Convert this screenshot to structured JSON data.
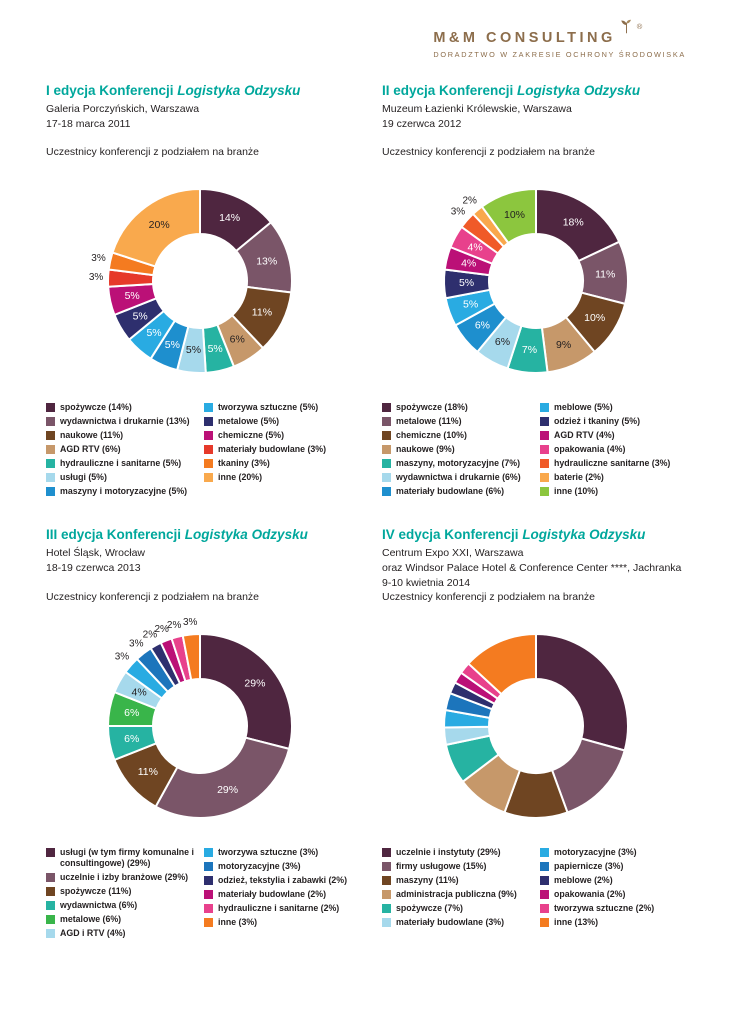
{
  "logo": {
    "name": "M&M CONSULTING",
    "registered": "®",
    "tagline": "DORADZTWO W ZAKRESIE OCHRONY ŚRODOWISKA",
    "color": "#8c6d4b"
  },
  "accent_color": "#00a79c",
  "sections": [
    {
      "title_prefix": "I edycja Konferencji ",
      "title_italic": "Logistyka Odzysku",
      "subtitle_lines": [
        "Galeria Porczyńskich, Warszawa",
        "17-18 marca 2011"
      ],
      "caption": "Uczestnicy konferencji z podziałem na branże"
    },
    {
      "title_prefix": "II edycja Konferencji ",
      "title_italic": "Logistyka Odzysku",
      "subtitle_lines": [
        "Muzeum Łazienki Królewskie, Warszawa",
        "19 czerwca 2012"
      ],
      "caption": "Uczestnicy konferencji z podziałem na branże"
    },
    {
      "title_prefix": "III edycja Konferencji ",
      "title_italic": "Logistyka Odzysku",
      "subtitle_lines": [
        "Hotel Śląsk, Wrocław",
        "18-19 czerwca 2013"
      ],
      "caption": "Uczestnicy konferencji z podziałem na branże"
    },
    {
      "title_prefix": "IV edycja Konferencji ",
      "title_italic": "Logistyka Odzysku",
      "subtitle_lines": [
        "Centrum Expo XXI, Warszawa",
        "oraz Windsor Palace Hotel & Conference Center ****, Jachranka",
        "9-10 kwietnia 2014"
      ],
      "caption": "Uczestnicy konferencji z podziałem na branże"
    }
  ],
  "chart_data": [
    {
      "type": "pie",
      "donut": true,
      "title": "Uczestnicy konferencji z podziałem na branże (I edycja, 2011)",
      "legend_position": "bottom",
      "show_slice_labels": true,
      "legend_split": 7,
      "slices": [
        {
          "label": "spożywcze",
          "value": 14,
          "color": "#4f2640"
        },
        {
          "label": "wydawnictwa i drukarnie",
          "value": 13,
          "color": "#7a5568"
        },
        {
          "label": "naukowe",
          "value": 11,
          "color": "#6f4522"
        },
        {
          "label": "AGD RTV",
          "value": 6,
          "color": "#c6986a"
        },
        {
          "label": "hydrauliczne i sanitarne",
          "value": 5,
          "color": "#26b3a2"
        },
        {
          "label": "usługi",
          "value": 5,
          "color": "#a6d9ec"
        },
        {
          "label": "maszyny i motoryzacyjne",
          "value": 5,
          "color": "#1e8fce"
        },
        {
          "label": "tworzywa sztuczne",
          "value": 5,
          "color": "#29abe2"
        },
        {
          "label": "metalowe",
          "value": 5,
          "color": "#2e2f6e"
        },
        {
          "label": "chemiczne",
          "value": 5,
          "color": "#bb1077"
        },
        {
          "label": "materiały budowlane",
          "value": 3,
          "color": "#e6392a"
        },
        {
          "label": "tkaniny",
          "value": 3,
          "color": "#f47b20"
        },
        {
          "label": "inne",
          "value": 20,
          "color": "#f9a94d"
        }
      ]
    },
    {
      "type": "pie",
      "donut": true,
      "title": "Uczestnicy konferencji z podziałem na branże (II edycja, 2012)",
      "legend_position": "bottom",
      "show_slice_labels": true,
      "legend_split": 7,
      "slices": [
        {
          "label": "spożywcze",
          "value": 18,
          "color": "#4f2640"
        },
        {
          "label": "metalowe",
          "value": 11,
          "color": "#7a5568"
        },
        {
          "label": "chemiczne",
          "value": 10,
          "color": "#6f4522"
        },
        {
          "label": "naukowe",
          "value": 9,
          "color": "#c6986a"
        },
        {
          "label": "maszyny, motoryzacyjne",
          "value": 7,
          "color": "#26b3a2"
        },
        {
          "label": "wydawnictwa i drukarnie",
          "value": 6,
          "color": "#a6d9ec"
        },
        {
          "label": "materiały budowlane",
          "value": 6,
          "color": "#1e8fce"
        },
        {
          "label": "meblowe",
          "value": 5,
          "color": "#29abe2"
        },
        {
          "label": "odzież i tkaniny",
          "value": 5,
          "color": "#2e2f6e"
        },
        {
          "label": "AGD RTV",
          "value": 4,
          "color": "#bb1077"
        },
        {
          "label": "opakowania",
          "value": 4,
          "color": "#e8418c"
        },
        {
          "label": "hydrauliczne sanitarne",
          "value": 3,
          "color": "#f05a28"
        },
        {
          "label": "baterie",
          "value": 2,
          "color": "#f9a84c"
        },
        {
          "label": "inne",
          "value": 10,
          "color": "#8cc63e"
        }
      ]
    },
    {
      "type": "pie",
      "donut": true,
      "title": "Uczestnicy konferencji z podziałem na branże (III edycja, 2013)",
      "legend_position": "bottom",
      "show_slice_labels": true,
      "legend_split": 6,
      "slices": [
        {
          "label": "usługi (w tym firmy komunalne i consultingowe)",
          "value": 29,
          "color": "#4f2640"
        },
        {
          "label": "uczelnie i izby branżowe",
          "value": 29,
          "color": "#7a5568"
        },
        {
          "label": "spożywcze",
          "value": 11,
          "color": "#6f4522"
        },
        {
          "label": "wydawnictwa",
          "value": 6,
          "color": "#26b3a2"
        },
        {
          "label": "metalowe",
          "value": 6,
          "color": "#39b54a"
        },
        {
          "label": "AGD i RTV",
          "value": 4,
          "color": "#a6d9ec"
        },
        {
          "label": "tworzywa sztuczne",
          "value": 3,
          "color": "#29abe2"
        },
        {
          "label": "motoryzacyjne",
          "value": 3,
          "color": "#1c75bc"
        },
        {
          "label": "odzież, tekstylia i zabawki",
          "value": 2,
          "color": "#2e2f6e"
        },
        {
          "label": "materiały budowlane",
          "value": 2,
          "color": "#bb1077"
        },
        {
          "label": "hydrauliczne i sanitarne",
          "value": 2,
          "color": "#e8418c"
        },
        {
          "label": "inne",
          "value": 3,
          "color": "#f47b20"
        }
      ]
    },
    {
      "type": "pie",
      "donut": true,
      "title": "Uczestnicy konferencji z podziałem na branże (IV edycja, 2014)",
      "legend_position": "bottom",
      "show_slice_labels": false,
      "legend_split": 6,
      "slices": [
        {
          "label": "uczelnie i instytuty",
          "value": 29,
          "color": "#4f2640"
        },
        {
          "label": "firmy usługowe",
          "value": 15,
          "color": "#7a5568"
        },
        {
          "label": "maszyny",
          "value": 11,
          "color": "#6f4522"
        },
        {
          "label": "administracja publiczna",
          "value": 9,
          "color": "#c6986a"
        },
        {
          "label": "spożywcze",
          "value": 7,
          "color": "#26b3a2"
        },
        {
          "label": "materiały budowlane",
          "value": 3,
          "color": "#a6d9ec"
        },
        {
          "label": "motoryzacyjne",
          "value": 3,
          "color": "#29abe2"
        },
        {
          "label": "papiernicze",
          "value": 3,
          "color": "#1c75bc"
        },
        {
          "label": "meblowe",
          "value": 2,
          "color": "#2e2f6e"
        },
        {
          "label": "opakowania",
          "value": 2,
          "color": "#bb1077"
        },
        {
          "label": "tworzywa sztuczne",
          "value": 2,
          "color": "#e8418c"
        },
        {
          "label": "inne",
          "value": 13,
          "color": "#f47b20"
        }
      ]
    }
  ]
}
